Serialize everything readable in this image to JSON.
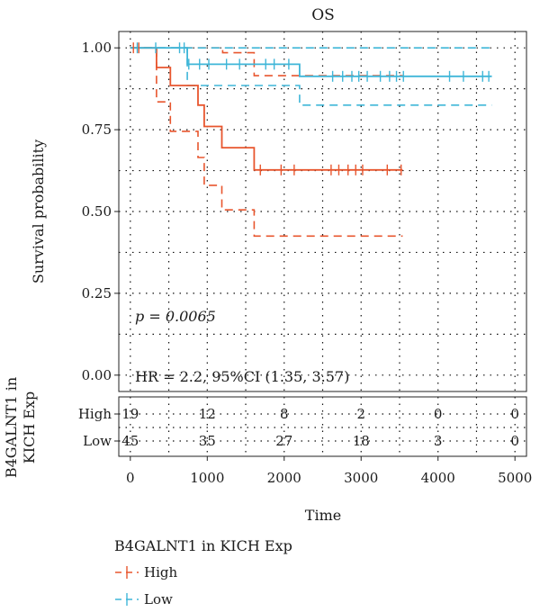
{
  "chart_data": {
    "type": "line",
    "title": "OS",
    "xlabel": "Time",
    "ylabel": "Survival probability",
    "xlim": [
      -150,
      5150
    ],
    "ylim": [
      -0.05,
      1.05
    ],
    "xticks": [
      "0",
      "1000",
      "2000",
      "3000",
      "4000",
      "5000"
    ],
    "yticks": [
      "0.00",
      "0.25",
      "0.50",
      "0.75",
      "1.00"
    ],
    "pvalue": "p = 0.0065",
    "hr_text": "HR = 2.2, 95%CI (1.35, 3.57)",
    "grid": true,
    "series": [
      {
        "name": "High",
        "color": "#e8562e",
        "curve": [
          [
            0,
            1.0
          ],
          [
            340,
            1.0
          ],
          [
            340,
            0.94
          ],
          [
            520,
            0.94
          ],
          [
            520,
            0.885
          ],
          [
            880,
            0.885
          ],
          [
            880,
            0.825
          ],
          [
            960,
            0.825
          ],
          [
            960,
            0.76
          ],
          [
            1190,
            0.76
          ],
          [
            1190,
            0.695
          ],
          [
            1610,
            0.695
          ],
          [
            1610,
            0.627
          ],
          [
            3540,
            0.627
          ]
        ],
        "lower": [
          [
            0,
            1.0
          ],
          [
            340,
            1.0
          ],
          [
            340,
            0.835
          ],
          [
            520,
            0.835
          ],
          [
            520,
            0.745
          ],
          [
            880,
            0.745
          ],
          [
            880,
            0.665
          ],
          [
            960,
            0.665
          ],
          [
            960,
            0.58
          ],
          [
            1190,
            0.58
          ],
          [
            1190,
            0.505
          ],
          [
            1610,
            0.505
          ],
          [
            1610,
            0.425
          ],
          [
            3540,
            0.425
          ]
        ],
        "upper": [
          [
            0,
            1.0
          ],
          [
            1200,
            1.0
          ],
          [
            1200,
            0.985
          ],
          [
            1610,
            0.985
          ],
          [
            1610,
            0.915
          ],
          [
            3540,
            0.915
          ]
        ],
        "censor": [
          [
            40,
            1.0
          ],
          [
            110,
            1.0
          ],
          [
            1690,
            0.627
          ],
          [
            1960,
            0.627
          ],
          [
            2130,
            0.627
          ],
          [
            2610,
            0.627
          ],
          [
            2710,
            0.627
          ],
          [
            2830,
            0.627
          ],
          [
            2930,
            0.627
          ],
          [
            3020,
            0.627
          ],
          [
            3340,
            0.627
          ],
          [
            3520,
            0.627
          ]
        ]
      },
      {
        "name": "Low",
        "color": "#3fb6d8",
        "curve": [
          [
            0,
            1.0
          ],
          [
            740,
            1.0
          ],
          [
            740,
            0.95
          ],
          [
            2200,
            0.95
          ],
          [
            2200,
            0.913
          ],
          [
            4700,
            0.913
          ]
        ],
        "lower": [
          [
            0,
            1.0
          ],
          [
            740,
            1.0
          ],
          [
            740,
            0.885
          ],
          [
            2200,
            0.885
          ],
          [
            2200,
            0.825
          ],
          [
            4700,
            0.825
          ]
        ],
        "upper": [
          [
            0,
            1.0
          ],
          [
            4700,
            1.0
          ]
        ],
        "censor": [
          [
            90,
            1.0
          ],
          [
            330,
            1.0
          ],
          [
            640,
            1.0
          ],
          [
            700,
            1.0
          ],
          [
            760,
            0.95
          ],
          [
            900,
            0.95
          ],
          [
            1020,
            0.95
          ],
          [
            1250,
            0.95
          ],
          [
            1420,
            0.95
          ],
          [
            1760,
            0.95
          ],
          [
            1870,
            0.95
          ],
          [
            2060,
            0.95
          ],
          [
            2630,
            0.913
          ],
          [
            2760,
            0.913
          ],
          [
            2880,
            0.913
          ],
          [
            2970,
            0.913
          ],
          [
            3080,
            0.913
          ],
          [
            3250,
            0.913
          ],
          [
            3370,
            0.913
          ],
          [
            3460,
            0.913
          ],
          [
            3550,
            0.913
          ],
          [
            4150,
            0.913
          ],
          [
            4330,
            0.913
          ],
          [
            4580,
            0.913
          ],
          [
            4660,
            0.913
          ]
        ]
      }
    ],
    "risk_table": {
      "ylabel_line1": "B4GALNT1 in",
      "ylabel_line2": "KICH Exp",
      "times": [
        0,
        1000,
        2000,
        3000,
        4000,
        5000
      ],
      "rows": [
        {
          "name": "High",
          "counts": [
            "19",
            "12",
            "8",
            "2",
            "0",
            "0"
          ]
        },
        {
          "name": "Low",
          "counts": [
            "45",
            "35",
            "27",
            "18",
            "3",
            "0"
          ]
        }
      ]
    },
    "legend": {
      "title": "B4GALNT1 in KICH Exp",
      "items": [
        "High",
        "Low"
      ],
      "placement": "bottom-left"
    }
  }
}
